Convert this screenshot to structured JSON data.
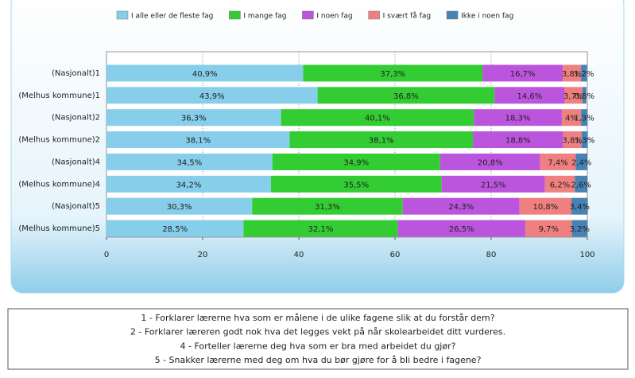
{
  "chart_data": {
    "type": "stacked-bar-horizontal",
    "categories": [
      "(Nasjonalt)1",
      "(Melhus kommune)1",
      "(Nasjonalt)2",
      "(Melhus kommune)2",
      "(Nasjonalt)4",
      "(Melhus kommune)4",
      "(Nasjonalt)5",
      "(Melhus kommune)5"
    ],
    "series": [
      {
        "name": "I alle eller de fleste fag",
        "color": "#87ceeb",
        "values": [
          40.9,
          43.9,
          36.3,
          38.1,
          34.5,
          34.2,
          30.3,
          28.5
        ],
        "value_labels": [
          "40,9%",
          "43,9%",
          "36,3%",
          "38,1%",
          "34,5%",
          "34,2%",
          "30,3%",
          "28,5%"
        ]
      },
      {
        "name": "I mange fag",
        "color": "#33cc33",
        "values": [
          37.3,
          36.8,
          40.1,
          38.1,
          34.9,
          35.5,
          31.3,
          32.1
        ],
        "value_labels": [
          "37,3%",
          "36,8%",
          "40,1%",
          "38,1%",
          "34,9%",
          "35,5%",
          "31,3%",
          "32,1%"
        ]
      },
      {
        "name": "I noen fag",
        "color": "#bb55dd",
        "values": [
          16.7,
          14.6,
          18.3,
          18.8,
          20.8,
          21.5,
          24.3,
          26.5
        ],
        "value_labels": [
          "16,7%",
          "14,6%",
          "18,3%",
          "18,8%",
          "20,8%",
          "21,5%",
          "24,3%",
          "26,5%"
        ]
      },
      {
        "name": "I svært få fag",
        "color": "#f08080",
        "values": [
          3.8,
          3.7,
          4,
          3.8,
          7.4,
          6.2,
          10.8,
          9.7
        ],
        "value_labels": [
          "3,8%",
          "3,7%",
          "4%",
          "3,8%",
          "7,4%",
          "6,2%",
          "10,8%",
          "9,7%"
        ]
      },
      {
        "name": "Ikke i noen fag",
        "color": "#4682b4",
        "values": [
          1.2,
          0.8,
          1.3,
          1.3,
          2.4,
          2.6,
          3.4,
          3.2
        ],
        "value_labels": [
          "1,2%",
          "0,8%",
          "1,3%",
          "1,3%",
          "2,4%",
          "2,6%",
          "3,4%",
          "3,2%"
        ]
      }
    ],
    "xlim": [
      0,
      100
    ],
    "xticks": [
      0,
      20,
      40,
      60,
      80,
      100
    ],
    "grid": true,
    "legend": "top",
    "notes": [
      "1 - Forklarer lærerne hva som er målene i de ulike fagene slik at du forstår dem?",
      "2 - Forklarer læreren godt nok hva det legges vekt på når skolearbeidet ditt vurderes.",
      "4 - Forteller lærerne deg hva som er bra med arbeidet du gjør?",
      "5 - Snakker lærerne med deg om hva du bør gjøre for å bli bedre i fagene?"
    ]
  }
}
